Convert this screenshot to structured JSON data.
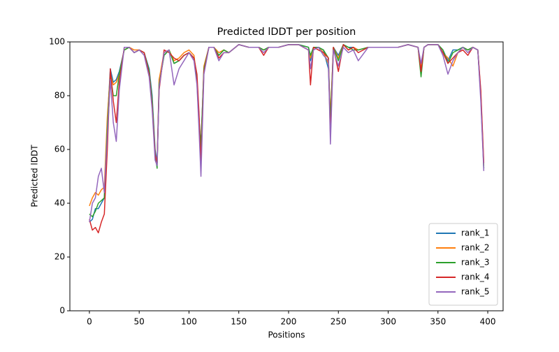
{
  "chart_data": {
    "type": "line",
    "title": "Predicted lDDT per position",
    "x_label": "Positions",
    "y_label": "Predicted lDDT",
    "x": [
      0,
      3,
      6,
      9,
      12,
      15,
      18,
      21,
      24,
      27,
      30,
      35,
      40,
      45,
      50,
      55,
      60,
      63,
      66,
      68,
      70,
      75,
      80,
      85,
      90,
      95,
      100,
      105,
      108,
      110,
      112,
      115,
      120,
      125,
      130,
      135,
      140,
      150,
      160,
      170,
      175,
      180,
      190,
      200,
      210,
      220,
      222,
      225,
      230,
      235,
      240,
      242,
      245,
      250,
      255,
      260,
      265,
      270,
      280,
      290,
      300,
      310,
      320,
      330,
      333,
      336,
      340,
      350,
      355,
      360,
      365,
      370,
      375,
      380,
      385,
      390,
      393,
      396
    ],
    "series": [
      {
        "name": "rank_1",
        "color": "#1f77b4",
        "values": [
          33,
          34,
          38,
          38,
          40,
          42,
          70,
          90,
          85,
          86,
          89,
          97,
          98,
          96,
          97,
          96,
          90,
          80,
          60,
          55,
          85,
          95,
          97,
          92,
          93,
          95,
          96,
          94,
          85,
          70,
          62,
          90,
          98,
          98,
          95,
          97,
          96,
          99,
          98,
          98,
          97,
          98,
          98,
          99,
          99,
          98,
          93,
          98,
          98,
          97,
          90,
          70,
          98,
          95,
          99,
          98,
          98,
          97,
          98,
          98,
          98,
          98,
          99,
          98,
          89,
          98,
          99,
          99,
          97,
          93,
          97,
          97,
          98,
          97,
          98,
          97,
          80,
          53
        ]
      },
      {
        "name": "rank_2",
        "color": "#ff7f0e",
        "values": [
          39,
          42,
          44,
          43,
          45,
          46,
          72,
          88,
          84,
          85,
          88,
          97,
          98,
          97,
          97,
          96,
          89,
          78,
          58,
          55,
          86,
          96,
          97,
          93,
          94,
          96,
          97,
          95,
          86,
          72,
          60,
          91,
          98,
          98,
          96,
          97,
          96,
          99,
          98,
          98,
          97,
          98,
          98,
          99,
          99,
          97,
          94,
          98,
          98,
          96,
          92,
          72,
          98,
          94,
          99,
          97,
          98,
          97,
          98,
          98,
          98,
          98,
          99,
          98,
          90,
          98,
          99,
          99,
          96,
          94,
          91,
          96,
          98,
          97,
          98,
          97,
          81,
          54
        ]
      },
      {
        "name": "rank_3",
        "color": "#2ca02c",
        "values": [
          36,
          35,
          37,
          40,
          41,
          42,
          68,
          88,
          80,
          80,
          88,
          97,
          98,
          96,
          97,
          96,
          89,
          78,
          58,
          53,
          84,
          95,
          97,
          92,
          93,
          95,
          96,
          94,
          86,
          72,
          61,
          90,
          98,
          98,
          95,
          97,
          96,
          99,
          98,
          98,
          97,
          98,
          98,
          99,
          99,
          98,
          95,
          98,
          98,
          97,
          94,
          70,
          98,
          93,
          99,
          98,
          97,
          97,
          98,
          98,
          98,
          98,
          99,
          98,
          87,
          98,
          99,
          99,
          97,
          92,
          96,
          97,
          98,
          97,
          98,
          97,
          80,
          53
        ]
      },
      {
        "name": "rank_4",
        "color": "#d62728",
        "values": [
          34,
          30,
          31,
          29,
          33,
          36,
          60,
          90,
          78,
          70,
          85,
          98,
          98,
          96,
          97,
          96,
          88,
          76,
          58,
          55,
          82,
          97,
          96,
          94,
          93,
          95,
          96,
          94,
          88,
          74,
          55,
          89,
          98,
          98,
          94,
          96,
          96,
          99,
          98,
          98,
          95,
          98,
          98,
          99,
          99,
          97,
          84,
          98,
          97,
          96,
          94,
          65,
          98,
          89,
          99,
          97,
          98,
          96,
          98,
          98,
          98,
          98,
          99,
          98,
          89,
          98,
          99,
          99,
          96,
          92,
          94,
          96,
          97,
          95,
          98,
          97,
          82,
          55
        ]
      },
      {
        "name": "rank_5",
        "color": "#9467bd",
        "values": [
          33,
          40,
          42,
          50,
          53,
          44,
          65,
          86,
          70,
          63,
          82,
          98,
          98,
          96,
          97,
          95,
          87,
          75,
          56,
          54,
          83,
          96,
          97,
          84,
          90,
          93,
          96,
          93,
          84,
          68,
          50,
          88,
          98,
          98,
          93,
          96,
          96,
          99,
          98,
          98,
          96,
          98,
          98,
          99,
          99,
          97,
          90,
          97,
          98,
          95,
          93,
          62,
          97,
          91,
          98,
          96,
          97,
          93,
          98,
          98,
          98,
          98,
          99,
          98,
          92,
          98,
          99,
          99,
          95,
          88,
          93,
          96,
          98,
          96,
          98,
          97,
          78,
          52
        ]
      }
    ],
    "xlim": [
      -19.6,
      415.4
    ],
    "ylim": [
      0,
      100
    ],
    "xticks": [
      0,
      50,
      100,
      150,
      200,
      250,
      300,
      350,
      400
    ],
    "yticks": [
      0,
      20,
      40,
      60,
      80,
      100
    ],
    "legend": "lower right"
  }
}
